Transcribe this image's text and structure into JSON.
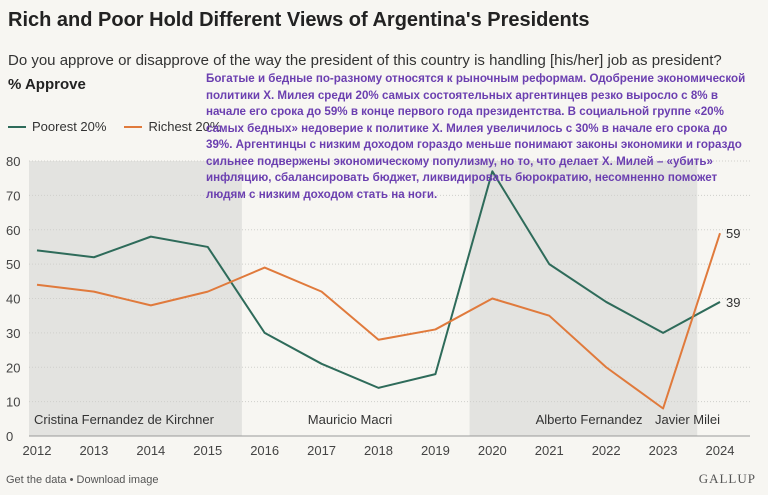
{
  "header": {
    "title": "Rich and Poor Hold Different Views of Argentina's Presidents",
    "subtitle": "Do you approve or disapprove of the way the president of this country is handling [his/her] job as president?",
    "measure": "% Approve"
  },
  "annotation": "Богатые и бедные по-разному относятся к рыночным реформам. Одобрение экономической политики Х. Милея среди 20% самых состоятельных аргентинцев резко выросло с 8% в начале его срока до 59% в конце первого года президентства. В социальной группе «20% самых бедных» недоверие к политике Х. Милея увеличилось с 30% в начале его срока до 39%. Аргентинцы с низким доходом гораздо меньше понимают законы экономики и гораздо сильнее подвержены экономическому популизму, но то, что делает Х. Милей – «убить» инфляцию, сбалансировать бюджет, ликвидировать бюрократию, несомненно поможет людям с низким доходом стать на ноги.",
  "footer": {
    "left": "Get the data • Download image",
    "brand": "GALLUP"
  },
  "colors": {
    "poorest": "#2e6b5a",
    "richest": "#e07a3c",
    "shade": "#e3e3e0"
  },
  "chart_data": {
    "type": "line",
    "x": [
      2012,
      2013,
      2014,
      2015,
      2016,
      2017,
      2018,
      2019,
      2020,
      2021,
      2022,
      2023,
      2024
    ],
    "ylim": [
      0,
      80
    ],
    "yticks": [
      0,
      10,
      20,
      30,
      40,
      50,
      60,
      70,
      80
    ],
    "grid": true,
    "legend_position": "top-left",
    "series": [
      {
        "name": "Poorest 20%",
        "color": "#2e6b5a",
        "values": [
          54,
          52,
          58,
          55,
          30,
          21,
          14,
          18,
          77,
          50,
          39,
          30,
          39
        ],
        "end_label": "39"
      },
      {
        "name": "Richest 20%",
        "color": "#e07a3c",
        "values": [
          44,
          42,
          38,
          42,
          49,
          42,
          28,
          31,
          40,
          35,
          20,
          8,
          59
        ],
        "end_label": "59"
      }
    ],
    "periods": [
      {
        "label": "Cristina Fernandez de Kirchner",
        "shaded": true
      },
      {
        "label": "Mauricio Macri",
        "shaded": false
      },
      {
        "label": "Alberto Fernandez",
        "shaded": true
      },
      {
        "label": "Javier Milei",
        "shaded": false
      }
    ]
  }
}
